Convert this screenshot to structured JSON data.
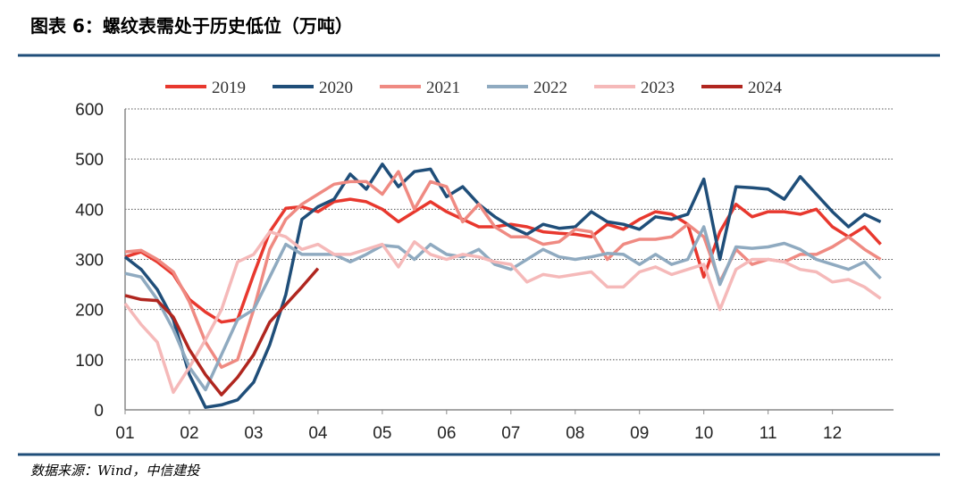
{
  "chart_data": {
    "type": "line",
    "title": "图表 6：螺纹表需处于历史低位（万吨）",
    "source": "数据来源：Wind，中信建投",
    "x": [
      1,
      1.25,
      1.5,
      1.75,
      2,
      2.25,
      2.5,
      2.75,
      3,
      3.25,
      3.5,
      3.75,
      4,
      4.25,
      4.5,
      4.75,
      5,
      5.25,
      5.5,
      5.75,
      6,
      6.25,
      6.5,
      6.75,
      7,
      7.25,
      7.5,
      7.75,
      8,
      8.25,
      8.5,
      8.75,
      9,
      9.25,
      9.5,
      9.75,
      10,
      10.25,
      10.5,
      10.75,
      11,
      11.25,
      11.5,
      11.75,
      12,
      12.25,
      12.5,
      12.75
    ],
    "xlim": [
      1,
      12.95
    ],
    "xticks": [
      {
        "value": 1,
        "label": "01"
      },
      {
        "value": 2,
        "label": "02"
      },
      {
        "value": 3,
        "label": "03"
      },
      {
        "value": 4,
        "label": "04"
      },
      {
        "value": 5,
        "label": "05"
      },
      {
        "value": 6,
        "label": "06"
      },
      {
        "value": 7,
        "label": "07"
      },
      {
        "value": 8,
        "label": "08"
      },
      {
        "value": 9,
        "label": "09"
      },
      {
        "value": 10,
        "label": "10"
      },
      {
        "value": 11,
        "label": "11"
      },
      {
        "value": 12,
        "label": "12"
      }
    ],
    "ylim": [
      0,
      600
    ],
    "yticks": [
      0,
      100,
      200,
      300,
      400,
      500,
      600
    ],
    "grid": true,
    "series": [
      {
        "name": "2019",
        "color": "#e8382e",
        "values": [
          305,
          315,
          295,
          270,
          220,
          195,
          175,
          180,
          270,
          355,
          402,
          405,
          395,
          415,
          420,
          415,
          400,
          375,
          395,
          415,
          395,
          380,
          365,
          365,
          370,
          365,
          355,
          352,
          350,
          345,
          370,
          360,
          380,
          395,
          390,
          370,
          265,
          355,
          410,
          385,
          395,
          395,
          390,
          400,
          365,
          345,
          365,
          330
        ]
      },
      {
        "name": "2020",
        "color": "#1f4e79",
        "values": [
          305,
          280,
          240,
          180,
          70,
          5,
          10,
          20,
          55,
          130,
          230,
          380,
          405,
          420,
          470,
          440,
          490,
          445,
          475,
          480,
          425,
          445,
          410,
          385,
          365,
          350,
          370,
          362,
          365,
          395,
          375,
          370,
          360,
          385,
          380,
          390,
          460,
          300,
          445,
          443,
          440,
          420,
          465,
          430,
          395,
          365,
          390,
          375
        ]
      },
      {
        "name": "2021",
        "color": "#ef8a82",
        "values": [
          315,
          318,
          300,
          275,
          215,
          135,
          85,
          100,
          200,
          320,
          380,
          410,
          430,
          450,
          455,
          455,
          430,
          475,
          400,
          455,
          445,
          375,
          410,
          365,
          345,
          345,
          330,
          335,
          360,
          355,
          300,
          330,
          340,
          340,
          345,
          370,
          345,
          255,
          320,
          290,
          300,
          295,
          310,
          310,
          325,
          345,
          320,
          300
        ]
      },
      {
        "name": "2022",
        "color": "#8faac0",
        "values": [
          272,
          265,
          220,
          160,
          85,
          40,
          110,
          180,
          200,
          265,
          330,
          310,
          310,
          310,
          295,
          310,
          328,
          325,
          300,
          330,
          310,
          305,
          320,
          290,
          280,
          300,
          320,
          305,
          300,
          305,
          312,
          310,
          290,
          310,
          290,
          300,
          365,
          250,
          325,
          322,
          325,
          332,
          320,
          300,
          290,
          280,
          295,
          262
        ]
      },
      {
        "name": "2023",
        "color": "#f5b9b9",
        "values": [
          212,
          170,
          135,
          35,
          85,
          140,
          200,
          295,
          310,
          355,
          345,
          320,
          330,
          310,
          310,
          320,
          330,
          285,
          335,
          310,
          300,
          310,
          305,
          295,
          290,
          255,
          270,
          265,
          270,
          275,
          245,
          245,
          275,
          285,
          270,
          280,
          290,
          200,
          280,
          300,
          300,
          295,
          280,
          275,
          255,
          260,
          245,
          222
        ]
      },
      {
        "name": "2024",
        "color": "#b0261f",
        "values": [
          228,
          220,
          218,
          185,
          120,
          70,
          30,
          65,
          110,
          175,
          210,
          245,
          282,
          null,
          null,
          null,
          null,
          null,
          null,
          null,
          null,
          null,
          null,
          null,
          null,
          null,
          null,
          null,
          null,
          null,
          null,
          null,
          null,
          null,
          null,
          null,
          null,
          null,
          null,
          null,
          null,
          null,
          null,
          null,
          null,
          null,
          null,
          null
        ]
      }
    ]
  }
}
